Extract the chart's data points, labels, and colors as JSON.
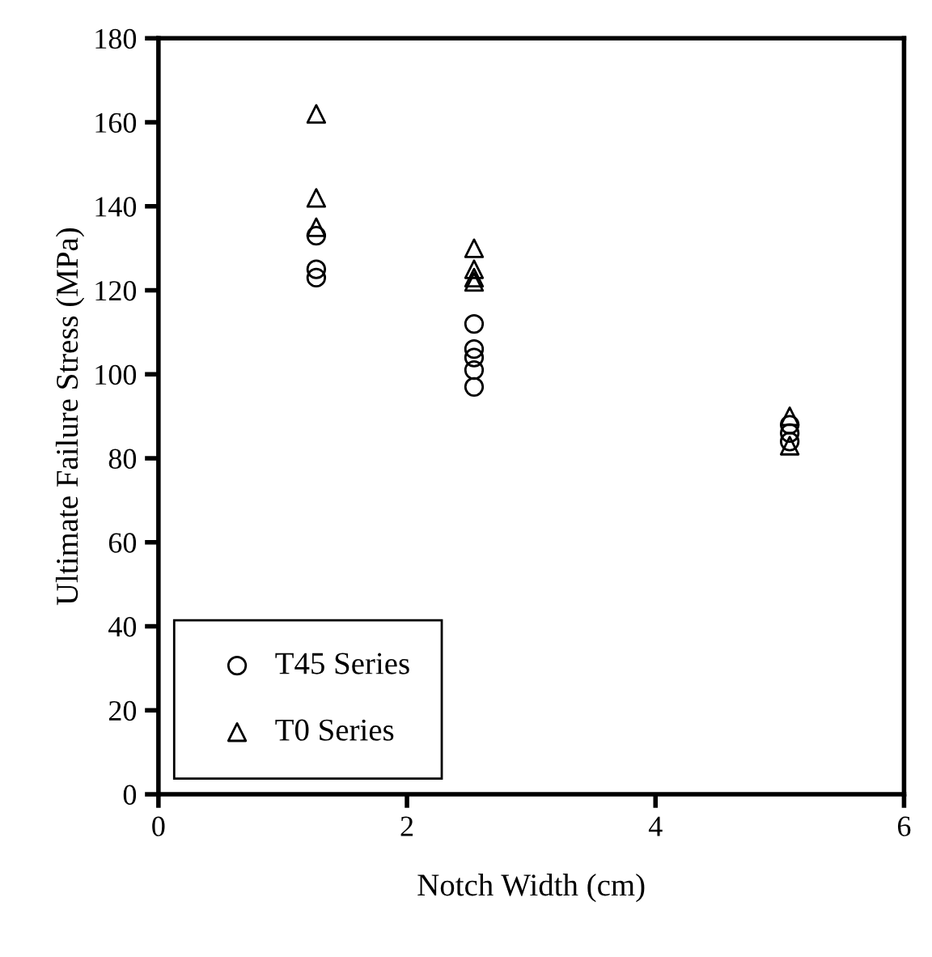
{
  "chart_data": {
    "type": "scatter",
    "xlabel": "Notch Width (cm)",
    "ylabel": "Ultimate Failure Stress (MPa)",
    "xlim": [
      0,
      6
    ],
    "xticks": [
      0,
      2,
      4,
      6
    ],
    "ylim": [
      0,
      180
    ],
    "yticks": [
      0,
      20,
      40,
      60,
      80,
      100,
      120,
      140,
      160,
      180
    ],
    "grid": false,
    "legend": "bottom left",
    "series": [
      {
        "name": "T45 Series",
        "color": "#000000",
        "marker": "circle",
        "x": [
          1.27,
          1.27,
          1.27,
          2.54,
          2.54,
          2.54,
          2.54,
          2.54,
          5.08,
          5.08,
          5.08
        ],
        "values": [
          133,
          125,
          123,
          112,
          106,
          104,
          101,
          97,
          88,
          86,
          84
        ]
      },
      {
        "name": "T0 Series",
        "color": "#000000",
        "marker": "triangle",
        "x": [
          1.27,
          1.27,
          1.27,
          2.54,
          2.54,
          2.54,
          2.54,
          5.08,
          5.08
        ],
        "values": [
          162,
          142,
          135,
          130,
          125,
          123,
          122,
          90,
          83
        ]
      }
    ]
  }
}
